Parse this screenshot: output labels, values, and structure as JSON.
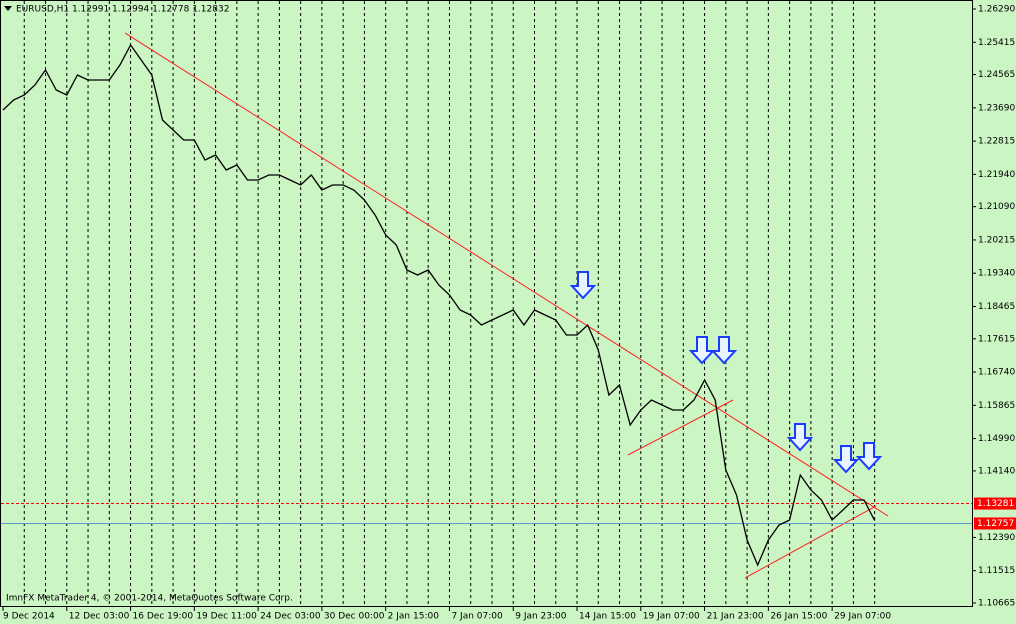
{
  "chart_data": {
    "type": "line",
    "title": "EURUSD,H1  1.12991 1.12994 1.12778 1.12832",
    "footer": "ImnFX MetaTrader 4, © 2001-2014, MetaQuotes Software Corp.",
    "categories": [
      "9 Dec 2014",
      null,
      null,
      null,
      null,
      null,
      "12 Dec 03:00",
      null,
      null,
      null,
      null,
      null,
      "16 Dec 19:00",
      null,
      null,
      null,
      null,
      null,
      "19 Dec 11:00",
      null,
      null,
      null,
      null,
      null,
      "24 Dec 03:00",
      null,
      null,
      null,
      null,
      null,
      "30 Dec 00:00",
      null,
      null,
      null,
      null,
      null,
      "2 Jan 15:00",
      null,
      null,
      null,
      null,
      null,
      "7 Jan 07:00",
      null,
      null,
      null,
      null,
      null,
      "9 Jan 23:00",
      null,
      null,
      null,
      null,
      null,
      "14 Jan 15:00",
      null,
      null,
      null,
      null,
      null,
      "19 Jan 07:00",
      null,
      null,
      null,
      null,
      null,
      "21 Jan 23:00",
      null,
      null,
      null,
      null,
      null,
      "26 Jan 15:00",
      null,
      null,
      null,
      null,
      null,
      "29 Jan 07:00",
      null,
      null,
      null,
      null
    ],
    "values": [
      1.23633,
      1.23896,
      1.24028,
      1.24291,
      1.24685,
      1.24159,
      1.24028,
      1.24554,
      1.24422,
      1.24422,
      1.24422,
      1.24817,
      1.25343,
      1.24948,
      1.24554,
      1.2337,
      1.23107,
      1.22844,
      1.22844,
      1.22318,
      1.22449,
      1.22055,
      1.22186,
      1.21792,
      1.21792,
      1.21923,
      1.21923,
      1.21792,
      1.2166,
      1.21923,
      1.21529,
      1.2166,
      1.2166,
      1.21529,
      1.21266,
      1.20871,
      1.20345,
      1.20082,
      1.19424,
      1.19293,
      1.19424,
      1.1903,
      1.18767,
      1.18372,
      1.18241,
      1.17978,
      1.18109,
      1.18241,
      1.18372,
      1.17978,
      1.18372,
      1.18241,
      1.18109,
      1.17715,
      1.17715,
      1.17978,
      1.1732,
      1.16136,
      1.16399,
      1.15347,
      1.15742,
      1.16005,
      1.15873,
      1.15742,
      1.15742,
      1.16005,
      1.16531,
      1.16005,
      1.14163,
      1.13506,
      1.12322,
      1.11664,
      1.12322,
      1.12717,
      1.12848,
      1.14032,
      1.13637,
      1.13374,
      1.12848,
      1.1311,
      1.13374,
      1.13374,
      1.12832
    ],
    "color": "#000000",
    "ylim": [
      1.10665,
      1.2629
    ],
    "yticks": [
      {
        "value": 1.2629,
        "label": "1.26290"
      },
      1.25415,
      1.24565,
      {
        "value": 1.2369,
        "label": "1.23690"
      },
      1.22815,
      {
        "value": 1.2194,
        "label": "1.21940"
      },
      {
        "value": 1.2109,
        "label": "1.21090"
      },
      1.20215,
      {
        "value": 1.1934,
        "label": "1.19340"
      },
      1.18465,
      1.17615,
      {
        "value": 1.1674,
        "label": "1.16740"
      },
      1.15865,
      {
        "value": 1.1499,
        "label": "1.14990"
      },
      {
        "value": 1.1414,
        "label": "1.14140"
      },
      {
        "value": 1.1239,
        "label": "1.12390"
      },
      1.11515,
      1.10665
    ],
    "price_lines": [
      {
        "value": 1.13281,
        "color": "#ff0000"
      },
      {
        "value": 1.12757,
        "color": "#5aa0c8"
      }
    ],
    "grid": true
  }
}
